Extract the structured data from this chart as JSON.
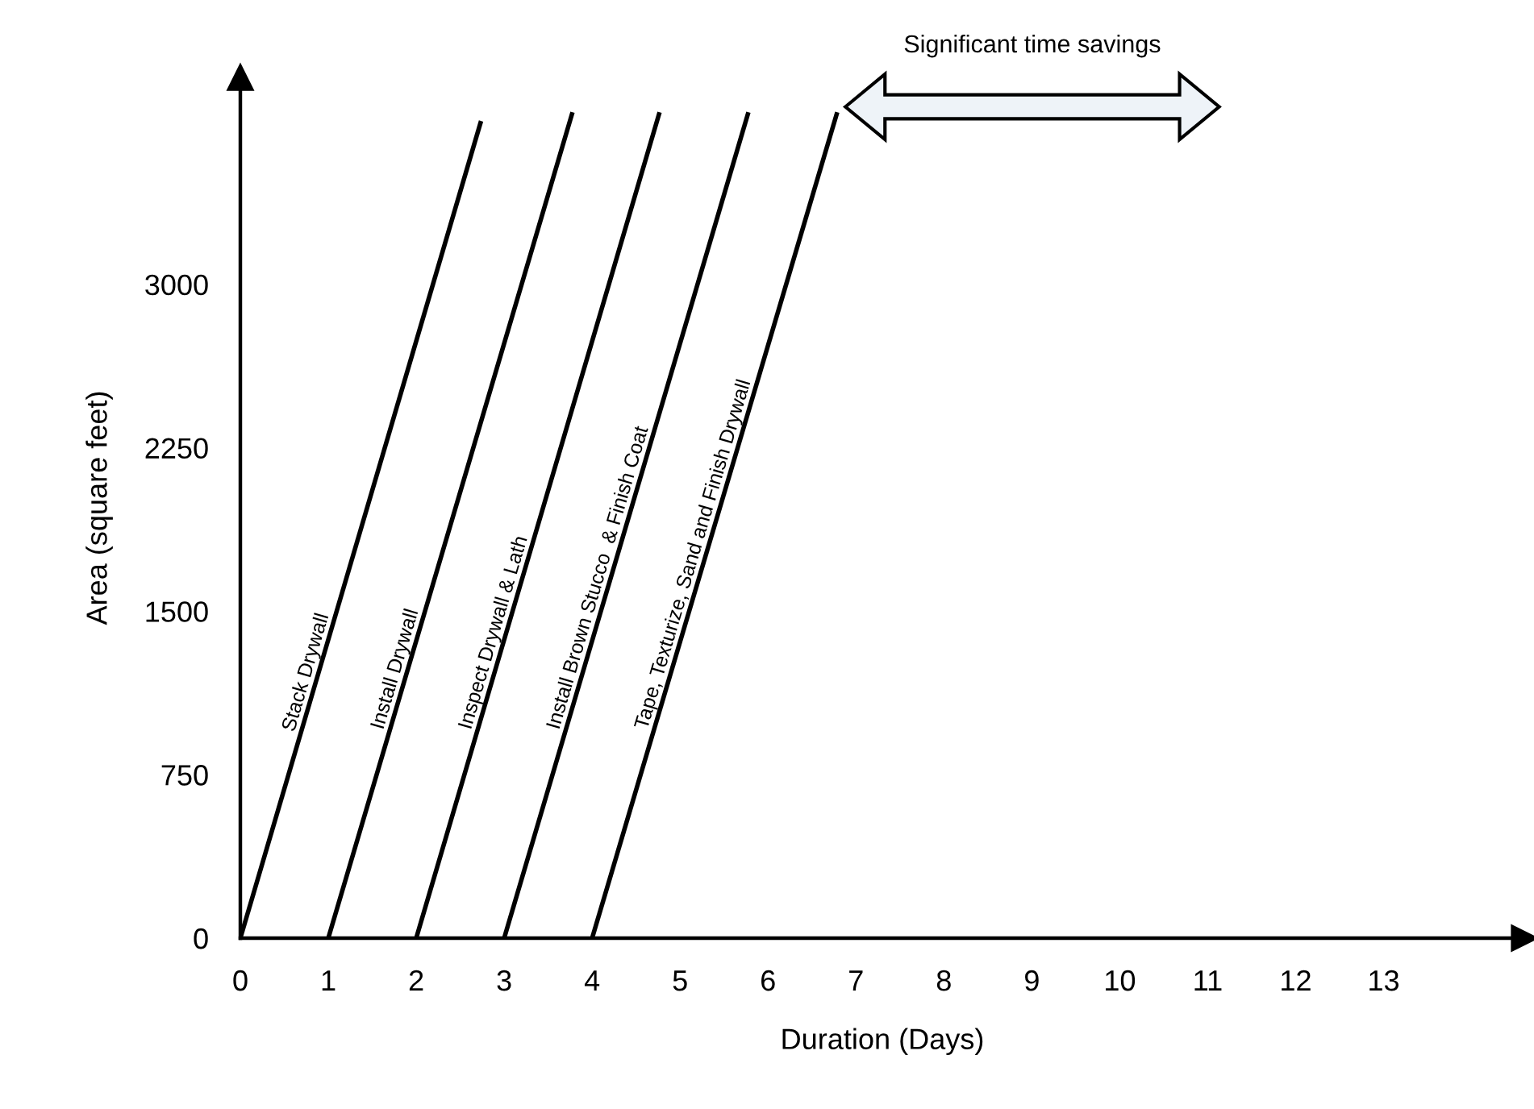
{
  "chart_data": {
    "type": "line",
    "xlabel": "Duration (Days)",
    "ylabel": "Area (square feet)",
    "xlim": [
      0,
      14.6
    ],
    "ylim": [
      0,
      3950
    ],
    "xticks": [
      0,
      1,
      2,
      3,
      4,
      5,
      6,
      7,
      8,
      9,
      10,
      11,
      12,
      13
    ],
    "yticks": [
      0,
      750,
      1500,
      2250,
      3000
    ],
    "series": [
      {
        "name": "Stack Drywall",
        "color": "#000000",
        "x": [
          0,
          2.73
        ],
        "values": [
          0,
          3740
        ]
      },
      {
        "name": "Install Drywall",
        "color": "#000000",
        "x": [
          1,
          3.77
        ],
        "values": [
          0,
          3780
        ]
      },
      {
        "name": "Inspect Drywall & Lath",
        "color": "#000000",
        "x": [
          2,
          4.76
        ],
        "values": [
          0,
          3780
        ]
      },
      {
        "name": "Install Brown Stucco  & Finish Coat",
        "color": "#000000",
        "x": [
          3,
          5.77
        ],
        "values": [
          0,
          3780
        ]
      },
      {
        "name": "Tape, Texturize, Sand and Finish Drywall",
        "color": "#000000",
        "x": [
          4,
          6.78
        ],
        "values": [
          0,
          3780
        ]
      }
    ],
    "annotations": [
      "Significant time savings"
    ],
    "grid": false,
    "legend": false,
    "marker": "none",
    "line_style": "solid"
  }
}
